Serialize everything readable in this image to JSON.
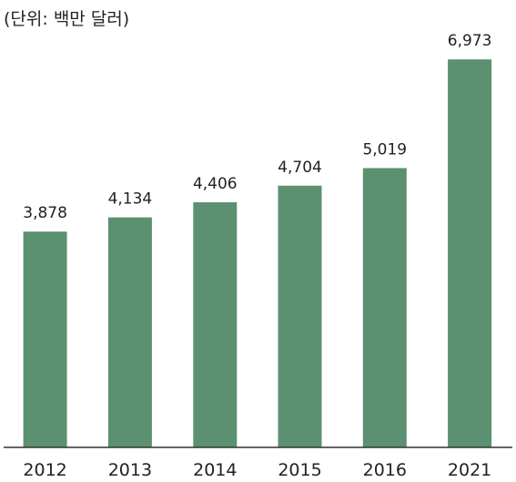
{
  "chart_data": {
    "type": "bar",
    "unit_note": "(단위: 백만 달러)",
    "categories": [
      "2012",
      "2013",
      "2014",
      "2015",
      "2016",
      "2021"
    ],
    "values": [
      3878,
      4134,
      4406,
      4704,
      5019,
      6973
    ],
    "value_labels": [
      "3,878",
      "4,134",
      "4,406",
      "4,704",
      "5,019",
      "6,973"
    ],
    "ylim": [
      0,
      7550
    ],
    "grid": false,
    "colors": {
      "bar": "#5b9170",
      "axis": "#333333",
      "text": "#222222"
    }
  }
}
